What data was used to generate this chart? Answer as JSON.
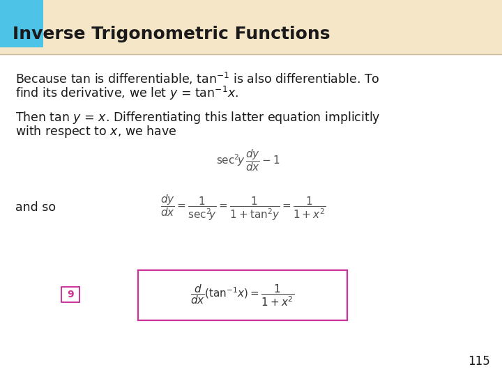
{
  "bg_color": "#ffffff",
  "header_bg": "#f5e6c8",
  "header_blue_box": "#4dc3e8",
  "header_text": "Inverse Trigonometric Functions",
  "header_text_color": "#1a1a1a",
  "page_number": "115",
  "pink_box_color": "#cc3399",
  "number_box_color": "#cc3399",
  "number_box_text": "9",
  "figw": 7.2,
  "figh": 5.4,
  "dpi": 100
}
